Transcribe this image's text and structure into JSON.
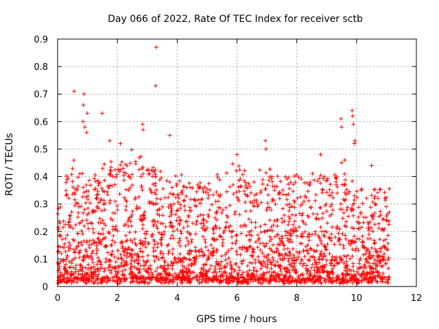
{
  "chart_data": {
    "type": "scatter",
    "title": "Day 066 of 2022, Rate Of TEC Index for receiver sctb",
    "xlabel": "GPS time / hours",
    "ylabel": "ROTI / TECUs",
    "xlim": [
      0,
      12
    ],
    "ylim": [
      0,
      0.9
    ],
    "xticks": [
      "0",
      "2",
      "4",
      "6",
      "8",
      "10",
      "12"
    ],
    "yticks": [
      "0",
      "0.1",
      "0.2",
      "0.3",
      "0.4",
      "0.5",
      "0.6",
      "0.7",
      "0.8",
      "0.9"
    ],
    "grid": true,
    "marker": "plus",
    "color": "#ff0000",
    "x_data_range": [
      0.0,
      11.1
    ],
    "outliers": [
      {
        "x": 0.55,
        "y": 0.71
      },
      {
        "x": 0.88,
        "y": 0.7
      },
      {
        "x": 0.86,
        "y": 0.66
      },
      {
        "x": 0.99,
        "y": 0.63
      },
      {
        "x": 1.49,
        "y": 0.63
      },
      {
        "x": 0.85,
        "y": 0.6
      },
      {
        "x": 0.91,
        "y": 0.58
      },
      {
        "x": 0.97,
        "y": 0.56
      },
      {
        "x": 2.84,
        "y": 0.59
      },
      {
        "x": 2.86,
        "y": 0.57
      },
      {
        "x": 3.3,
        "y": 0.87
      },
      {
        "x": 3.28,
        "y": 0.73
      },
      {
        "x": 3.75,
        "y": 0.55
      },
      {
        "x": 1.74,
        "y": 0.53
      },
      {
        "x": 2.1,
        "y": 0.52
      },
      {
        "x": 6.95,
        "y": 0.53
      },
      {
        "x": 6.97,
        "y": 0.5
      },
      {
        "x": 9.48,
        "y": 0.61
      },
      {
        "x": 9.5,
        "y": 0.58
      },
      {
        "x": 9.85,
        "y": 0.64
      },
      {
        "x": 9.87,
        "y": 0.62
      },
      {
        "x": 9.89,
        "y": 0.59
      },
      {
        "x": 9.95,
        "y": 0.53
      },
      {
        "x": 9.93,
        "y": 0.52
      },
      {
        "x": 8.8,
        "y": 0.48
      },
      {
        "x": 6.0,
        "y": 0.48
      },
      {
        "x": 10.5,
        "y": 0.44
      },
      {
        "x": 9.6,
        "y": 0.46
      },
      {
        "x": 9.5,
        "y": 0.45
      }
    ],
    "envelope": [
      {
        "x": 0.0,
        "y": 0.3
      },
      {
        "x": 0.3,
        "y": 0.42
      },
      {
        "x": 0.6,
        "y": 0.48
      },
      {
        "x": 1.0,
        "y": 0.4
      },
      {
        "x": 1.5,
        "y": 0.45
      },
      {
        "x": 2.0,
        "y": 0.48
      },
      {
        "x": 2.5,
        "y": 0.5
      },
      {
        "x": 3.0,
        "y": 0.45
      },
      {
        "x": 3.5,
        "y": 0.44
      },
      {
        "x": 4.0,
        "y": 0.42
      },
      {
        "x": 4.5,
        "y": 0.4
      },
      {
        "x": 5.0,
        "y": 0.38
      },
      {
        "x": 5.5,
        "y": 0.42
      },
      {
        "x": 6.0,
        "y": 0.45
      },
      {
        "x": 6.5,
        "y": 0.4
      },
      {
        "x": 7.0,
        "y": 0.45
      },
      {
        "x": 7.5,
        "y": 0.4
      },
      {
        "x": 8.0,
        "y": 0.42
      },
      {
        "x": 8.5,
        "y": 0.42
      },
      {
        "x": 9.0,
        "y": 0.4
      },
      {
        "x": 9.5,
        "y": 0.42
      },
      {
        "x": 10.0,
        "y": 0.38
      },
      {
        "x": 10.5,
        "y": 0.36
      },
      {
        "x": 11.0,
        "y": 0.4
      }
    ]
  }
}
